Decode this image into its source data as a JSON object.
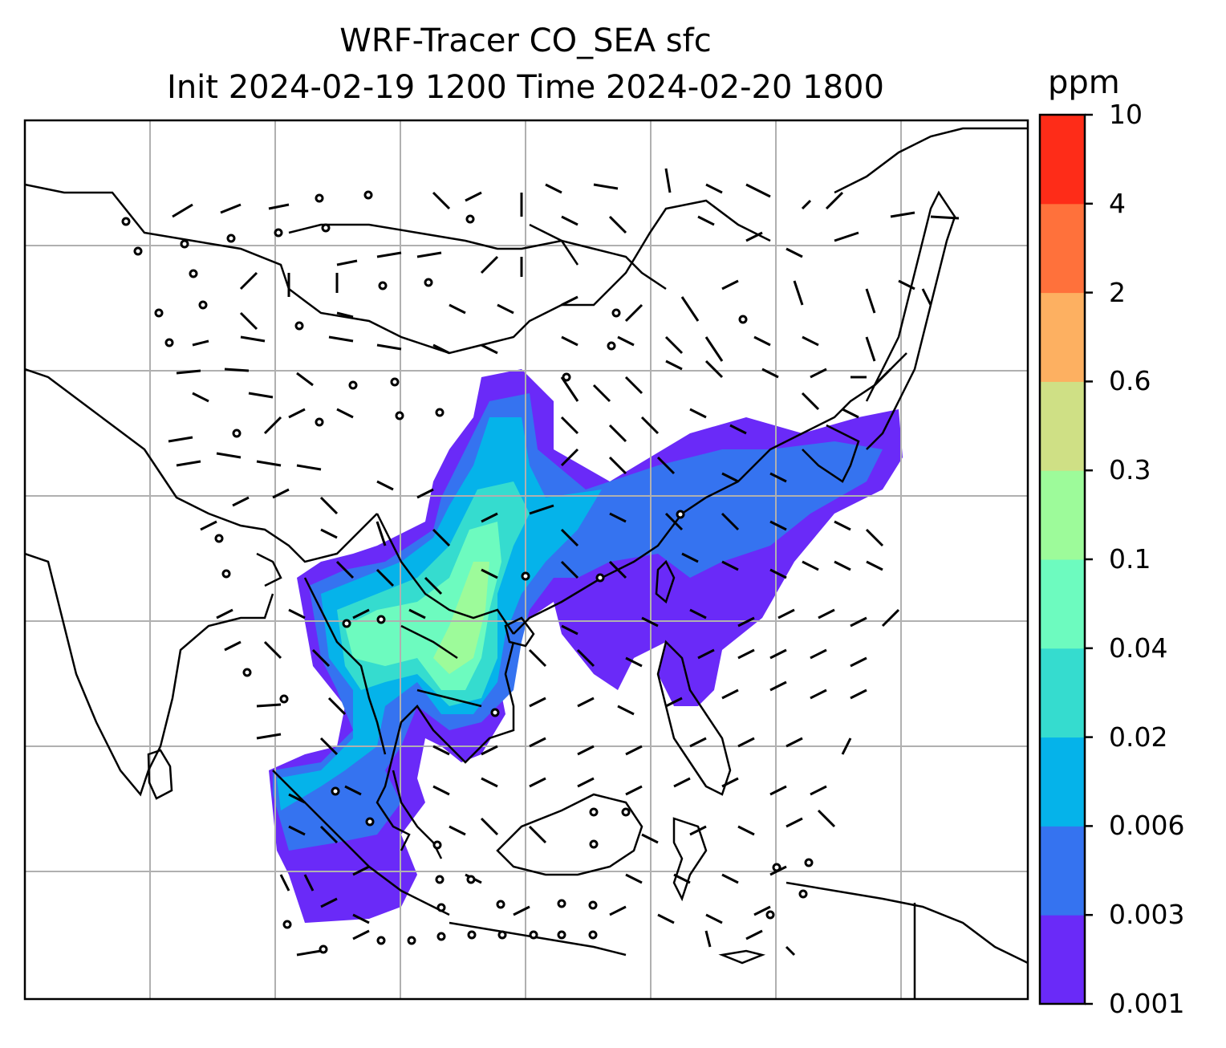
{
  "figure": {
    "title_line1": "WRF-Tracer CO_SEA sfc",
    "title_line2": "Init 2024-02-19 1200 Time 2024-02-20 1800"
  },
  "colorbar": {
    "unit": "ppm",
    "levels": [
      "0.001",
      "0.003",
      "0.006",
      "0.02",
      "0.04",
      "0.1",
      "0.3",
      "0.6",
      "2",
      "4",
      "10"
    ],
    "colors": [
      "#6a2af8",
      "#3573f0",
      "#05b3ea",
      "#35dccf",
      "#6dfbbf",
      "#9dfb9a",
      "#cfe085",
      "#fdb061",
      "#ff713b",
      "#fe2c18"
    ]
  },
  "map": {
    "field": "CO_SEA tracer concentration (surface)",
    "overlays": [
      "coastlines",
      "country borders",
      "lat-lon gridlines",
      "wind barbs"
    ]
  }
}
